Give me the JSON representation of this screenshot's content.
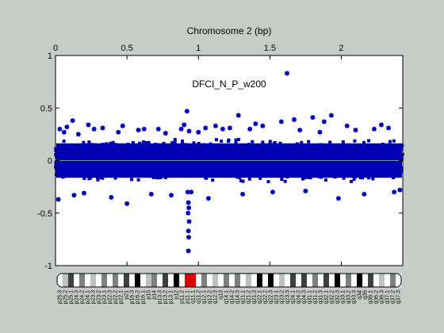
{
  "figure": {
    "background": "#c8ccc8",
    "plot_background": "#ffffff",
    "point_color": "#0000b4",
    "zero_line_color": "#7f8faa"
  },
  "chart_data": {
    "type": "scatter",
    "title": "Chromosome 2 (bp)",
    "annotation": "DFCI_N_P_w200",
    "x_axis": {
      "position": "top",
      "lim": [
        0,
        2.43
      ],
      "ticks": [
        0,
        0.5,
        1,
        1.5,
        2
      ],
      "tick_labels": [
        "0",
        "0.5",
        "1",
        "1.5",
        "2"
      ]
    },
    "y_axis": {
      "lim": [
        -1,
        1
      ],
      "ticks": [
        -1,
        -0.5,
        0,
        0.5,
        1
      ],
      "tick_labels": [
        "-1",
        "-0.5",
        "0",
        "0.5",
        "1"
      ]
    },
    "zero_line": 0,
    "band": {
      "y_min": -0.2,
      "y_max": 0.2,
      "description": "dense cloud of points spanning the whole chromosome"
    },
    "series": [
      {
        "x": [
          0.02,
          0.03,
          0.06,
          0.08,
          0.12,
          0.13,
          0.16,
          0.2,
          0.23,
          0.27,
          0.33,
          0.39,
          0.44,
          0.47,
          0.5,
          0.58,
          0.62,
          0.67,
          0.72,
          0.77,
          0.81,
          0.88,
          0.9,
          0.92,
          0.925,
          0.93,
          0.933,
          0.928,
          0.935,
          0.93,
          0.932,
          0.93,
          0.935,
          0.95,
          1.0,
          1.05,
          1.07,
          1.12,
          1.17,
          1.22,
          1.28,
          1.31,
          1.36,
          1.4,
          1.45,
          1.52,
          1.58,
          1.62,
          1.67,
          1.71,
          1.75,
          1.8,
          1.85,
          1.88,
          1.93,
          1.98,
          2.04,
          2.1,
          2.16,
          2.23,
          2.28,
          2.33,
          2.37,
          2.41
        ],
        "y": [
          -0.37,
          0.3,
          0.27,
          0.32,
          0.38,
          -0.33,
          0.25,
          -0.31,
          0.34,
          0.3,
          0.31,
          -0.35,
          0.27,
          0.33,
          -0.41,
          0.29,
          0.3,
          -0.32,
          0.3,
          0.26,
          -0.33,
          0.3,
          0.34,
          0.47,
          -0.3,
          -0.4,
          -0.45,
          -0.5,
          -0.58,
          -0.67,
          -0.73,
          -0.86,
          0.28,
          -0.3,
          0.27,
          0.31,
          -0.36,
          0.33,
          0.3,
          0.31,
          0.43,
          -0.32,
          0.3,
          0.35,
          0.33,
          -0.3,
          0.37,
          0.83,
          0.39,
          0.29,
          -0.29,
          0.41,
          0.27,
          0.37,
          0.43,
          -0.36,
          0.33,
          0.29,
          -0.32,
          0.3,
          0.34,
          0.31,
          -0.3,
          -0.28
        ]
      }
    ]
  },
  "ideogram": {
    "bands": [
      {
        "label": "p25.3",
        "stain": "gneg"
      },
      {
        "label": "p25.2",
        "stain": "gpos25"
      },
      {
        "label": "p25.1",
        "stain": "gpos75"
      },
      {
        "label": "p24.3",
        "stain": "gneg"
      },
      {
        "label": "p24.2",
        "stain": "gpos50"
      },
      {
        "label": "p24.1",
        "stain": "gneg"
      },
      {
        "label": "p23.3",
        "stain": "gpos25"
      },
      {
        "label": "p23.2",
        "stain": "gneg"
      },
      {
        "label": "p23.1",
        "stain": "gpos50"
      },
      {
        "label": "p22.3",
        "stain": "gneg"
      },
      {
        "label": "p22.2",
        "stain": "gpos50"
      },
      {
        "label": "p22.1",
        "stain": "gneg"
      },
      {
        "label": "p21",
        "stain": "gpos75"
      },
      {
        "label": "p16.3",
        "stain": "gneg"
      },
      {
        "label": "p16.2",
        "stain": "gpos100"
      },
      {
        "label": "p16.1",
        "stain": "gneg"
      },
      {
        "label": "p15",
        "stain": "gpos25"
      },
      {
        "label": "p14",
        "stain": "gpos50"
      },
      {
        "label": "p13.3",
        "stain": "gneg"
      },
      {
        "label": "p13.2",
        "stain": "gpos75"
      },
      {
        "label": "p13.1",
        "stain": "gneg"
      },
      {
        "label": "p12",
        "stain": "gpos100"
      },
      {
        "label": "p11.2",
        "stain": "gneg"
      },
      {
        "label": "p11.1",
        "stain": "acen"
      },
      {
        "label": "q11.1",
        "stain": "acen"
      },
      {
        "label": "q11.2",
        "stain": "gneg"
      },
      {
        "label": "q12.1",
        "stain": "gpos50"
      },
      {
        "label": "q12.2",
        "stain": "gneg"
      },
      {
        "label": "q12.3",
        "stain": "gpos25"
      },
      {
        "label": "q13",
        "stain": "gneg"
      },
      {
        "label": "q14.1",
        "stain": "gpos50"
      },
      {
        "label": "q14.2",
        "stain": "gneg"
      },
      {
        "label": "q14.3",
        "stain": "gpos50"
      },
      {
        "label": "q21.1",
        "stain": "gneg"
      },
      {
        "label": "q21.2",
        "stain": "gpos25"
      },
      {
        "label": "q21.3",
        "stain": "gneg"
      },
      {
        "label": "q22.1",
        "stain": "gpos100"
      },
      {
        "label": "q22.2",
        "stain": "gneg"
      },
      {
        "label": "q22.3",
        "stain": "gpos100"
      },
      {
        "label": "q23.1",
        "stain": "gneg"
      },
      {
        "label": "q23.2",
        "stain": "gpos25"
      },
      {
        "label": "q23.3",
        "stain": "gneg"
      },
      {
        "label": "q24.1",
        "stain": "gpos75"
      },
      {
        "label": "q24.2",
        "stain": "gneg"
      },
      {
        "label": "q24.3",
        "stain": "gpos75"
      },
      {
        "label": "q31.1",
        "stain": "gneg"
      },
      {
        "label": "q31.2",
        "stain": "gpos50"
      },
      {
        "label": "q31.3",
        "stain": "gneg"
      },
      {
        "label": "q32.1",
        "stain": "gpos75"
      },
      {
        "label": "q32.2",
        "stain": "gneg"
      },
      {
        "label": "q32.3",
        "stain": "gpos100"
      },
      {
        "label": "q33.1",
        "stain": "gneg"
      },
      {
        "label": "q33.2",
        "stain": "gpos50"
      },
      {
        "label": "q33.3",
        "stain": "gneg"
      },
      {
        "label": "q34",
        "stain": "gpos100"
      },
      {
        "label": "q35",
        "stain": "gneg"
      },
      {
        "label": "q36.1",
        "stain": "gpos75"
      },
      {
        "label": "q36.2",
        "stain": "gneg"
      },
      {
        "label": "q36.3",
        "stain": "gpos25"
      },
      {
        "label": "q37.1",
        "stain": "gneg"
      },
      {
        "label": "q37.2",
        "stain": "gpos50"
      },
      {
        "label": "q37.3",
        "stain": "gneg"
      }
    ],
    "stain_colors": {
      "gneg": "#ffffff",
      "gpos25": "#c0c0c0",
      "gpos50": "#808080",
      "gpos75": "#404040",
      "gpos100": "#000000",
      "acen": "#e00000"
    }
  }
}
